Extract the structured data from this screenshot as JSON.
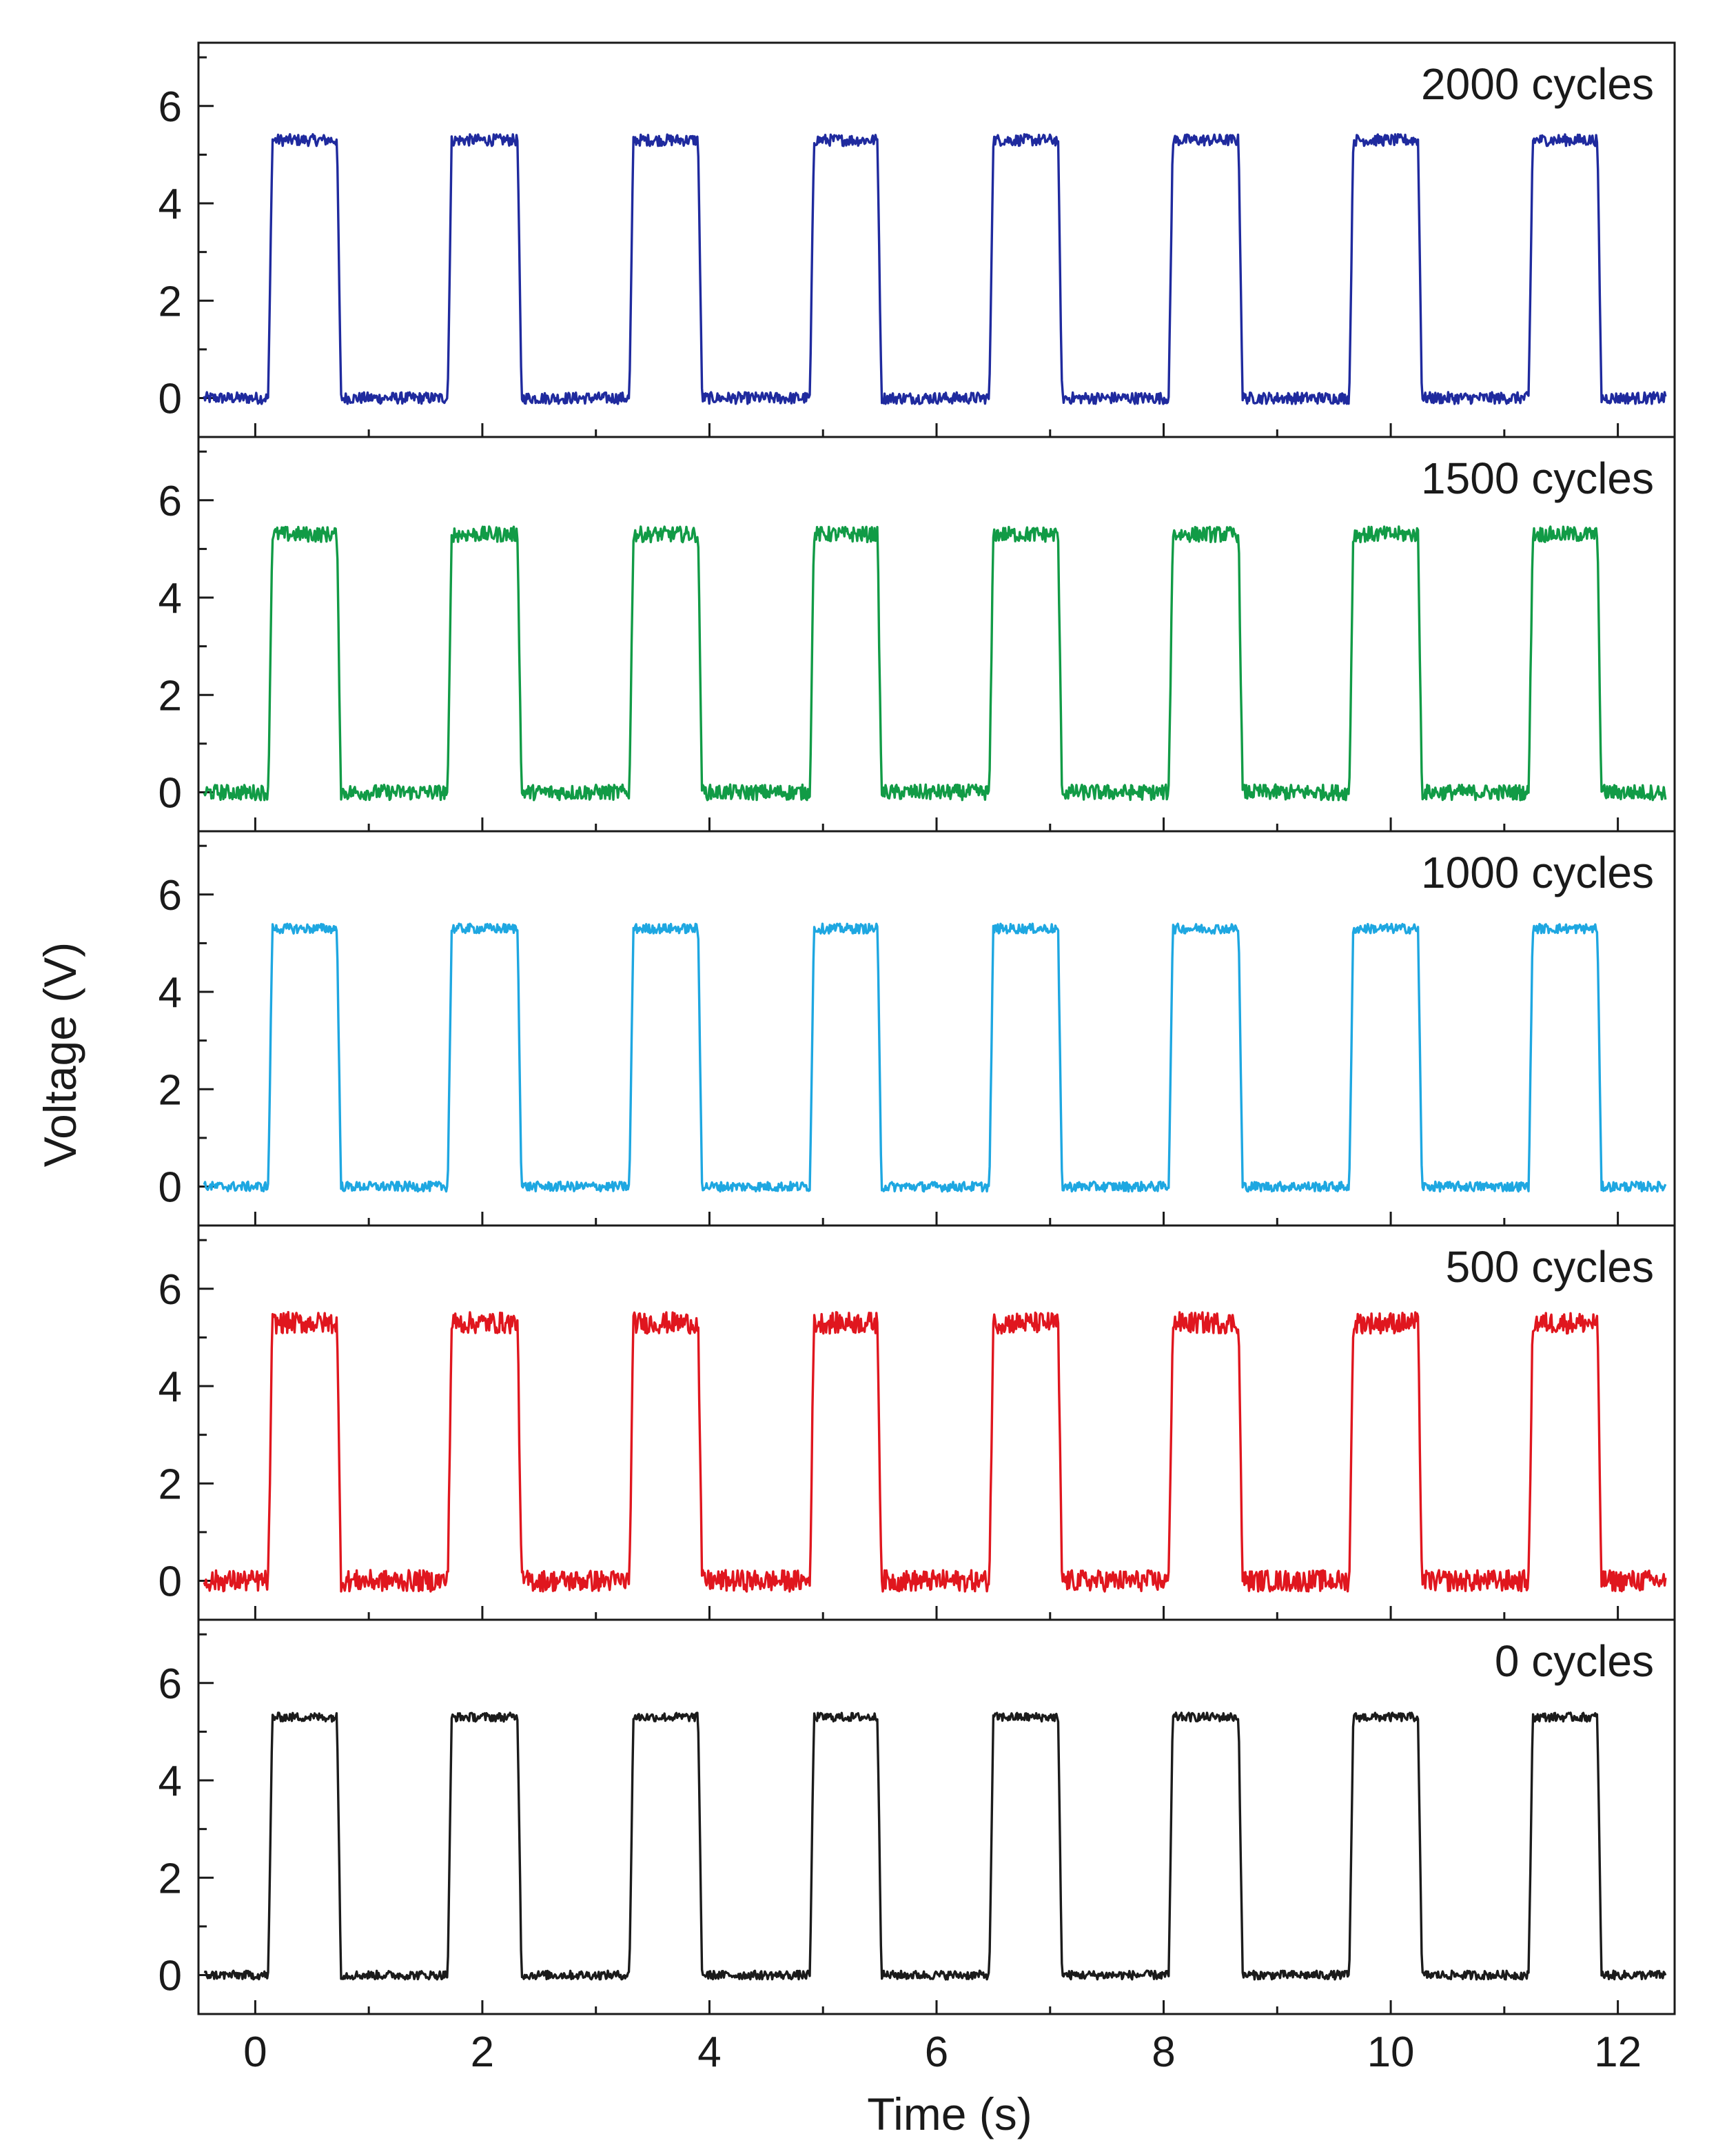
{
  "chart_data": {
    "type": "line",
    "xlabel": "Time (s)",
    "ylabel": "Voltage (V)",
    "xlim": [
      -0.5,
      12.5
    ],
    "ylim": [
      -0.8,
      7.3
    ],
    "x_ticks": [
      0,
      2,
      4,
      6,
      8,
      10,
      12
    ],
    "y_ticks": [
      0,
      2,
      4,
      6
    ],
    "pulse_high_v": 5.3,
    "pulse_low_v": 0,
    "pulses": [
      {
        "start": 0.15,
        "end": 0.72
      },
      {
        "start": 1.73,
        "end": 2.31
      },
      {
        "start": 3.33,
        "end": 3.9
      },
      {
        "start": 4.92,
        "end": 5.48
      },
      {
        "start": 6.5,
        "end": 7.07
      },
      {
        "start": 8.08,
        "end": 8.66
      },
      {
        "start": 9.67,
        "end": 10.24
      },
      {
        "start": 11.25,
        "end": 11.82
      }
    ],
    "series": [
      {
        "name": "2000 cycles",
        "color": "#1f2a9e",
        "noise_v": 0.12
      },
      {
        "name": "1500 cycles",
        "color": "#119b46",
        "noise_v": 0.16
      },
      {
        "name": "1000 cycles",
        "color": "#1ea7e1",
        "noise_v": 0.1
      },
      {
        "name": "500 cycles",
        "color": "#e0161e",
        "noise_v": 0.22
      },
      {
        "name": "0 cycles",
        "color": "#1b1b1b",
        "noise_v": 0.09
      }
    ]
  }
}
